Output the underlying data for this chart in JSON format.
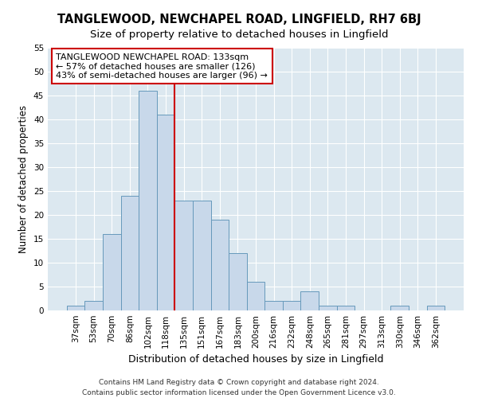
{
  "title": "TANGLEWOOD, NEWCHAPEL ROAD, LINGFIELD, RH7 6BJ",
  "subtitle": "Size of property relative to detached houses in Lingfield",
  "xlabel": "Distribution of detached houses by size in Lingfield",
  "ylabel": "Number of detached properties",
  "bar_labels": [
    "37sqm",
    "53sqm",
    "70sqm",
    "86sqm",
    "102sqm",
    "118sqm",
    "135sqm",
    "151sqm",
    "167sqm",
    "183sqm",
    "200sqm",
    "216sqm",
    "232sqm",
    "248sqm",
    "265sqm",
    "281sqm",
    "297sqm",
    "313sqm",
    "330sqm",
    "346sqm",
    "362sqm"
  ],
  "bar_values": [
    1,
    2,
    16,
    24,
    46,
    41,
    23,
    23,
    19,
    12,
    6,
    2,
    2,
    4,
    1,
    1,
    0,
    0,
    1,
    0,
    1
  ],
  "bar_color": "#c8d8ea",
  "bar_edge_color": "#6699bb",
  "vline_index": 6,
  "vline_color": "#cc0000",
  "ylim": [
    0,
    55
  ],
  "yticks": [
    0,
    5,
    10,
    15,
    20,
    25,
    30,
    35,
    40,
    45,
    50,
    55
  ],
  "annotation_title": "TANGLEWOOD NEWCHAPEL ROAD: 133sqm",
  "annotation_line1": "← 57% of detached houses are smaller (126)",
  "annotation_line2": "43% of semi-detached houses are larger (96) →",
  "annotation_box_color": "#ffffff",
  "annotation_box_edge_color": "#cc0000",
  "footer1": "Contains HM Land Registry data © Crown copyright and database right 2024.",
  "footer2": "Contains public sector information licensed under the Open Government Licence v3.0.",
  "fig_bg_color": "#ffffff",
  "ax_bg_color": "#dce8f0",
  "grid_color": "#ffffff",
  "title_fontsize": 10.5,
  "subtitle_fontsize": 9.5,
  "xlabel_fontsize": 9,
  "ylabel_fontsize": 8.5,
  "tick_fontsize": 7.5,
  "annotation_fontsize": 8,
  "footer_fontsize": 6.5
}
